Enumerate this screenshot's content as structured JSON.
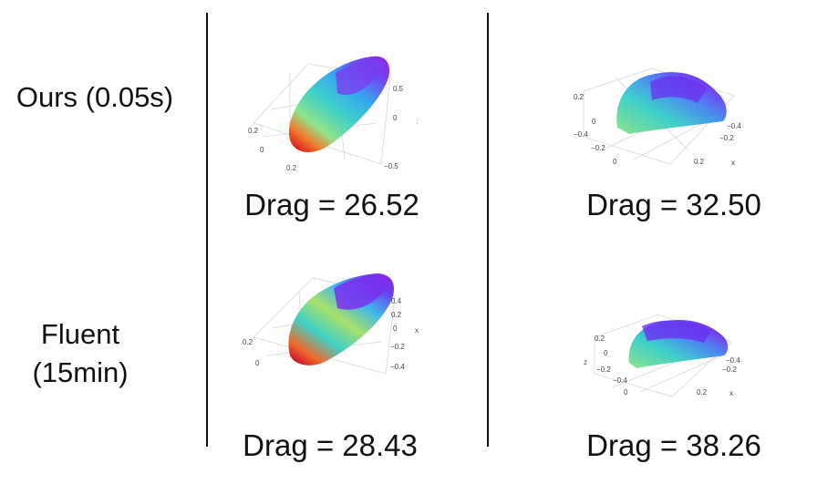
{
  "rows": [
    {
      "label_lines": [
        "Ours (0.05s)"
      ]
    },
    {
      "label_lines": [
        "Fluent",
        "(15min)"
      ]
    }
  ],
  "cells": [
    {
      "drag": "Drag = 26.52",
      "ticks": {
        "t0": "0.5",
        "t1": "0",
        "t2": "x",
        "t3": "−0.5",
        "t4": "0.2",
        "t5": "0",
        "t6": "0.2"
      }
    },
    {
      "drag": "Drag = 32.50",
      "ticks": {
        "t0": "0.2",
        "t1": "0",
        "t2": "−0.2",
        "t3": "−0.4",
        "t4": "0",
        "t5": "0.2",
        "t6": "−0.2",
        "t7": "−0.4",
        "t8": "x"
      }
    },
    {
      "drag": "Drag = 28.43",
      "ticks": {
        "t0": "0.4",
        "t1": "0.2",
        "t2": "0",
        "t3": "x",
        "t4": "−0.2",
        "t5": "−0.4",
        "t6": "0.2",
        "t7": "0"
      }
    },
    {
      "drag": "Drag = 38.26",
      "ticks": {
        "t0": "0.2",
        "t1": "0",
        "t2": "z",
        "t3": "−0.2",
        "t4": "−0.4",
        "t5": "0",
        "t6": "0.2",
        "t7": "−0.2",
        "t8": "−0.4",
        "t9": "x"
      }
    }
  ]
}
